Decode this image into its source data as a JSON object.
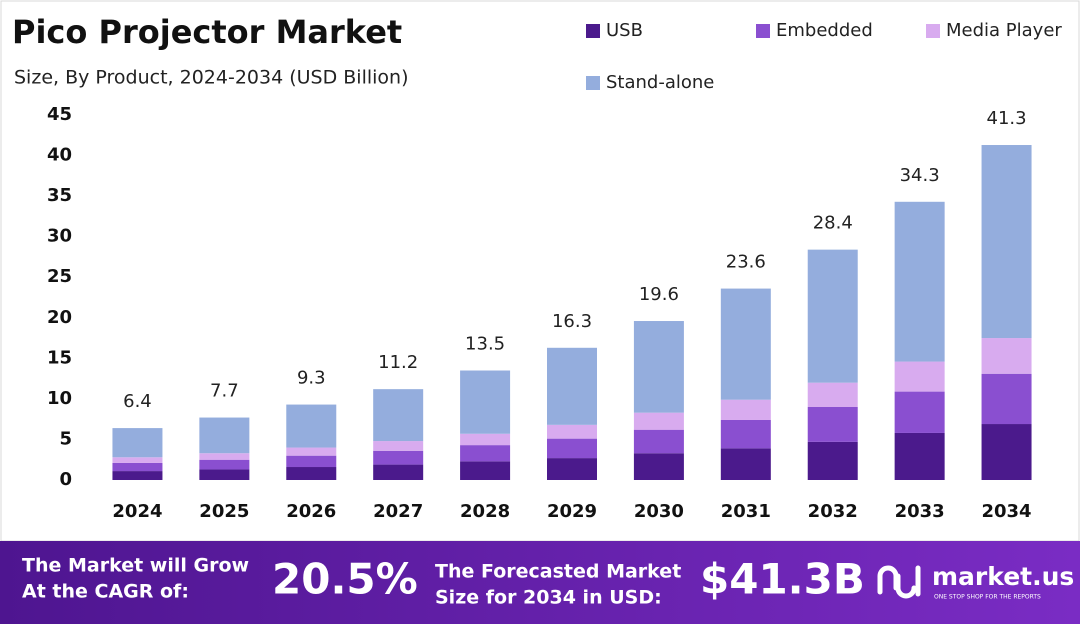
{
  "chart_data": {
    "type": "stacked-bar",
    "title": "Pico Projector Market",
    "subtitle": "Size, By Product, 2024-2034 (USD Billion)",
    "categories": [
      "2024",
      "2025",
      "2026",
      "2027",
      "2028",
      "2029",
      "2030",
      "2031",
      "2032",
      "2033",
      "2034"
    ],
    "series": [
      {
        "name": "USB",
        "color": "#4b1a8c",
        "values": [
          1.1,
          1.3,
          1.6,
          1.9,
          2.3,
          2.7,
          3.3,
          3.9,
          4.7,
          5.8,
          6.9
        ]
      },
      {
        "name": "Embedded",
        "color": "#8a4fd0",
        "values": [
          1.0,
          1.2,
          1.4,
          1.7,
          2.0,
          2.4,
          2.9,
          3.5,
          4.3,
          5.1,
          6.2
        ]
      },
      {
        "name": "Media Player",
        "color": "#d8abef",
        "values": [
          0.7,
          0.8,
          1.0,
          1.2,
          1.4,
          1.7,
          2.1,
          2.5,
          3.0,
          3.7,
          4.4
        ]
      },
      {
        "name": "Stand-alone",
        "color": "#94addd",
        "values": [
          3.6,
          4.4,
          5.3,
          6.4,
          7.8,
          9.5,
          11.3,
          13.7,
          16.4,
          19.7,
          23.8
        ]
      }
    ],
    "totals": [
      6.4,
      7.7,
      9.3,
      11.2,
      13.5,
      16.3,
      19.6,
      23.6,
      28.4,
      34.3,
      41.3
    ],
    "ylim": [
      0,
      45
    ],
    "yticks": [
      0,
      5,
      10,
      15,
      20,
      25,
      30,
      35,
      40,
      45
    ]
  },
  "banner": {
    "cagr_text": [
      "The Market will Grow",
      "At the CAGR of:"
    ],
    "cagr": "20.5%",
    "forecast_text": [
      "The Forecasted Market",
      "Size for 2034 in USD:"
    ],
    "forecast": "$41.3B",
    "logo": "market.us",
    "tagline": "ONE STOP SHOP FOR THE REPORTS"
  }
}
